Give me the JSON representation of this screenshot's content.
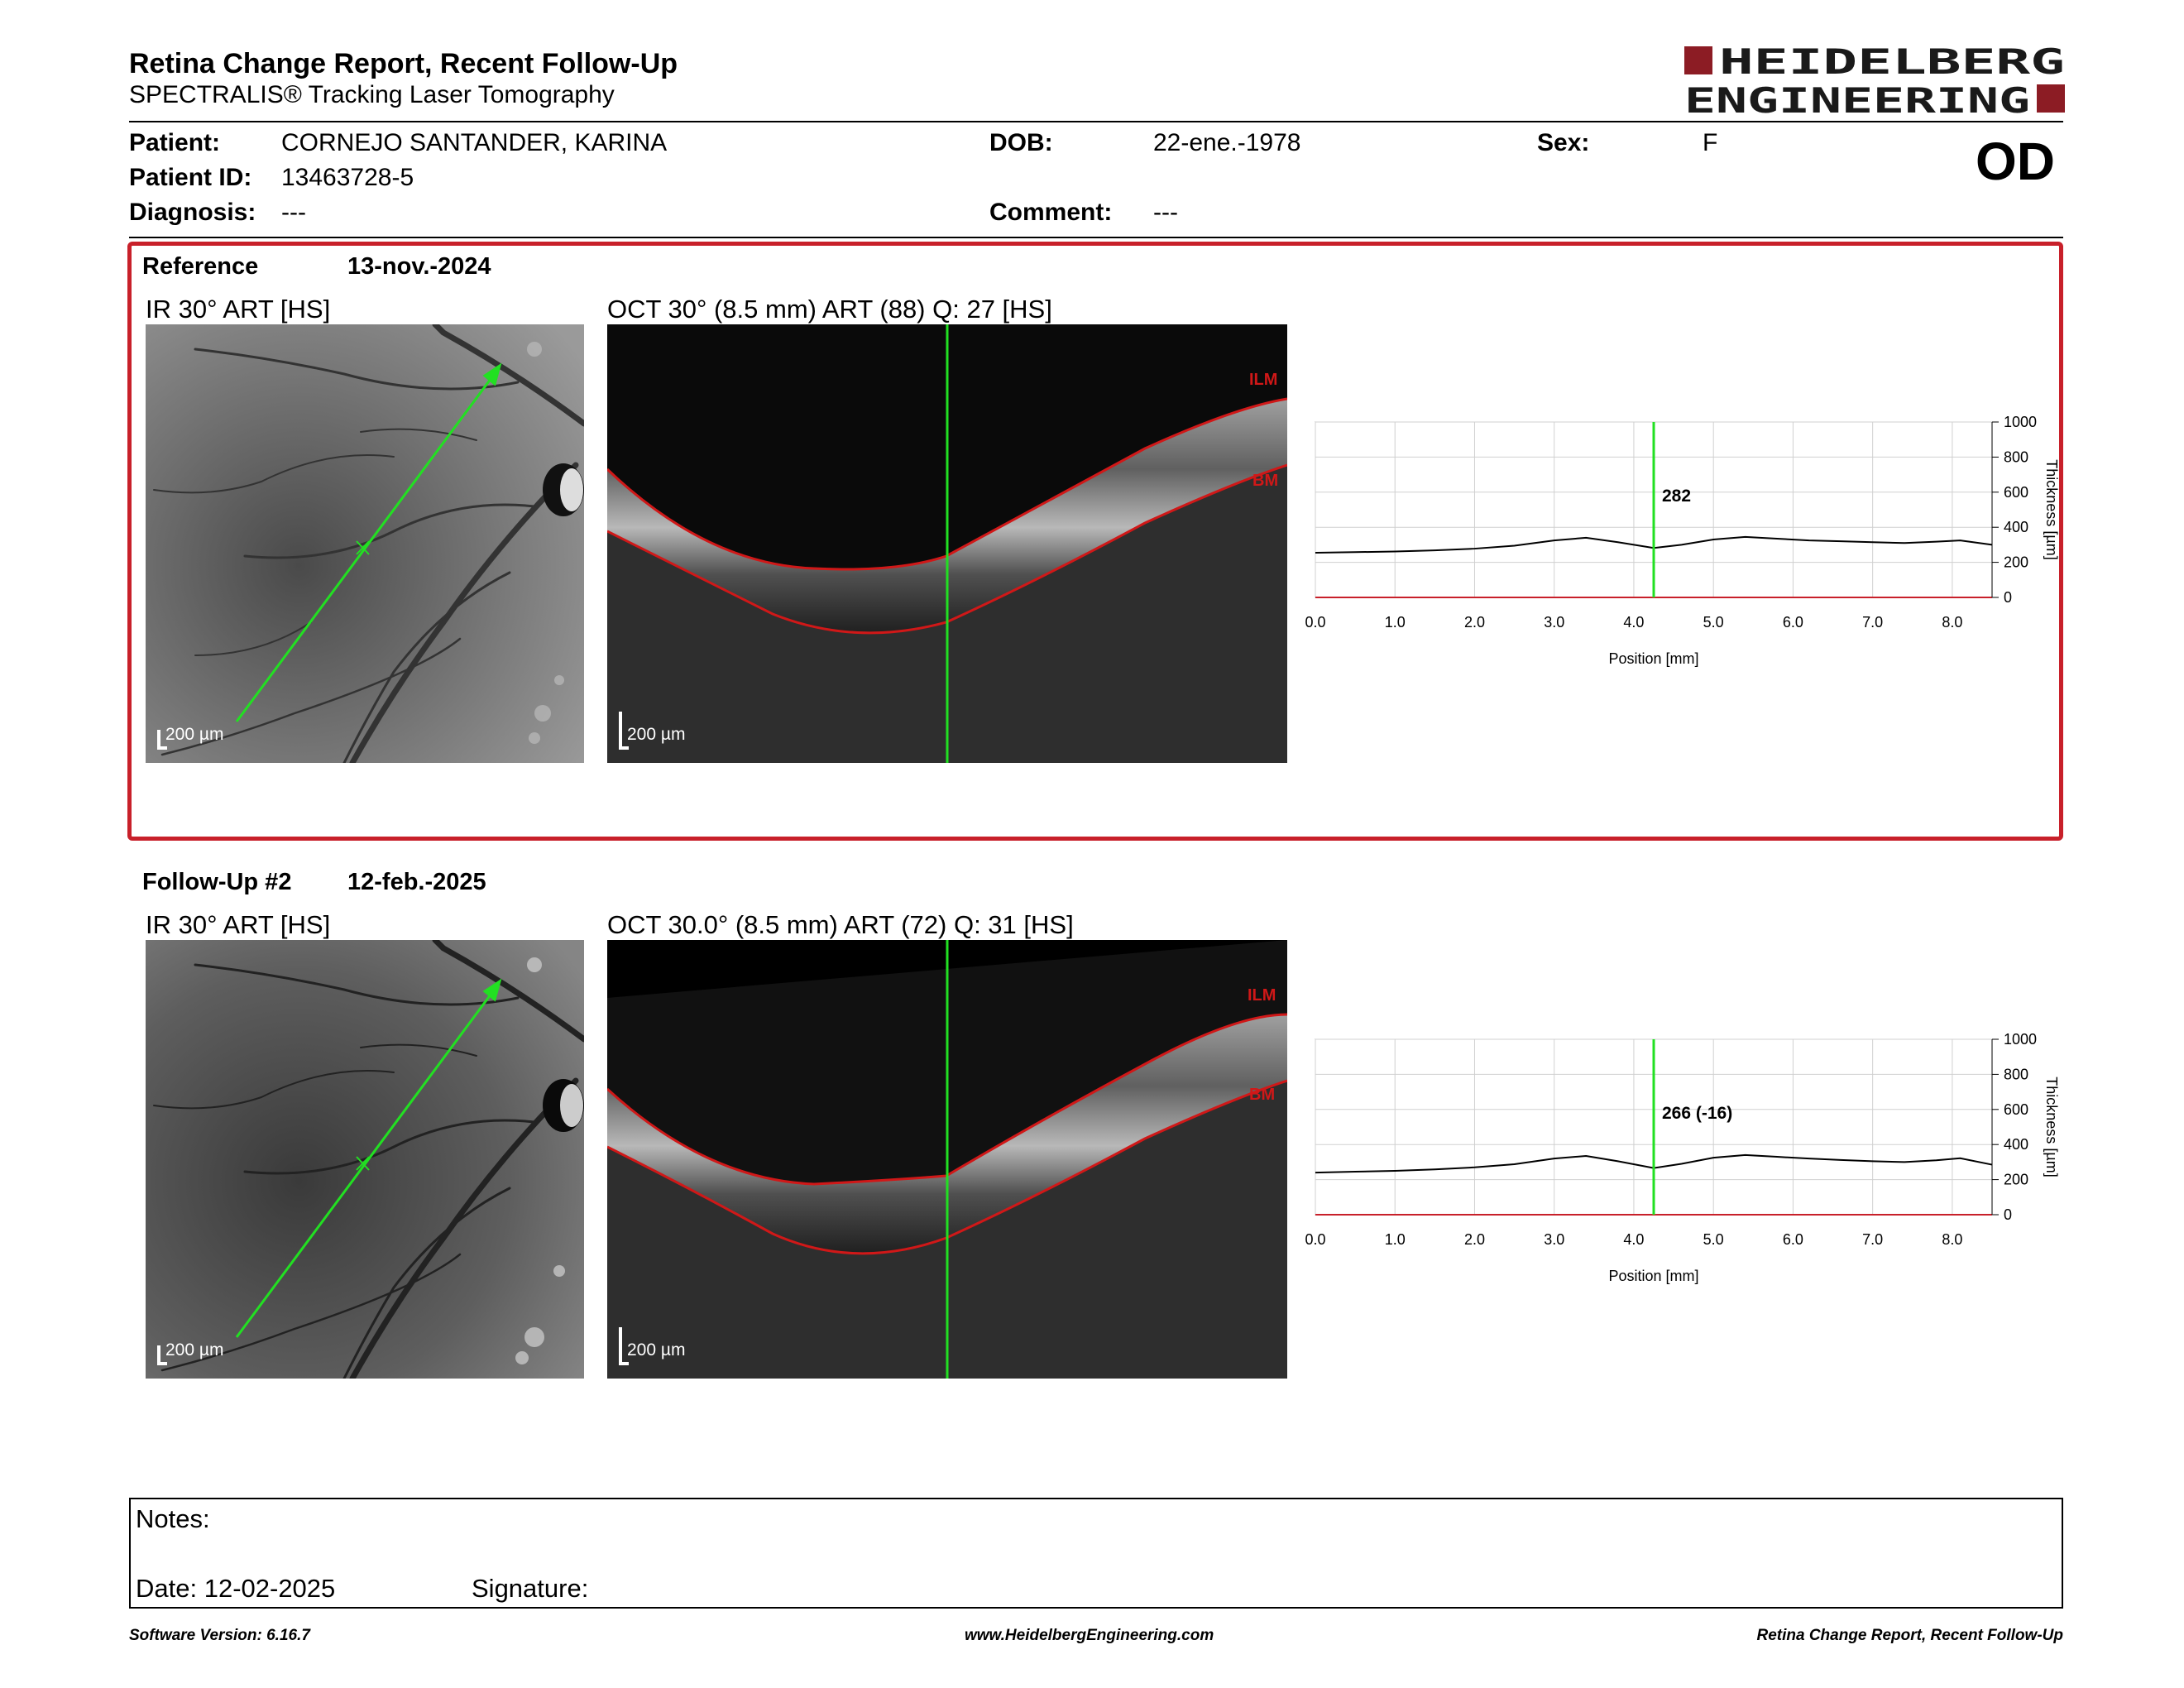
{
  "header": {
    "title": "Retina Change Report, Recent Follow-Up",
    "subtitle": "SPECTRALIS® Tracking Laser Tomography",
    "logo_line1": "HEIDELBERG",
    "logo_line2": "ENGINEERING",
    "eye": "OD"
  },
  "patient": {
    "patient_label": "Patient:",
    "patient_value": "CORNEJO SANTANDER, KARINA",
    "id_label": "Patient ID:",
    "id_value": "13463728-5",
    "diagnosis_label": "Diagnosis:",
    "diagnosis_value": "---",
    "dob_label": "DOB:",
    "dob_value": "22-ene.-1978",
    "comment_label": "Comment:",
    "comment_value": "---",
    "sex_label": "Sex:",
    "sex_value": "F"
  },
  "reference": {
    "label": "Reference",
    "date": "13-nov.-2024",
    "ir_label": "IR 30° ART [HS]",
    "oct_label": "OCT 30° (8.5 mm) ART (88) Q: 27 [HS]",
    "scale_ir": "200 µm",
    "scale_oct": "200 µm",
    "ilm": "ILM",
    "bm": "BM"
  },
  "followup": {
    "label": "Follow-Up #2",
    "date": "12-feb.-2025",
    "ir_label": "IR 30° ART [HS]",
    "oct_label": "OCT 30.0° (8.5 mm) ART (72) Q: 31 [HS]",
    "scale_ir": "200 µm",
    "scale_oct": "200 µm",
    "ilm": "ILM",
    "bm": "BM"
  },
  "chart_data": [
    {
      "type": "line",
      "xlabel": "Position [mm]",
      "ylabel": "Thickness [µm]",
      "xlim": [
        0,
        8.5
      ],
      "ylim": [
        0,
        1000
      ],
      "xticks": [
        "0.0",
        "1.0",
        "2.0",
        "3.0",
        "4.0",
        "5.0",
        "6.0",
        "7.0",
        "8.0"
      ],
      "yticks": [
        "0",
        "200",
        "400",
        "600",
        "800",
        "1000"
      ],
      "cursor_x": 4.25,
      "cursor_label": "282",
      "grid": true,
      "series": [
        {
          "x": [
            0,
            0.5,
            1.0,
            1.5,
            2.0,
            2.5,
            3.0,
            3.4,
            3.8,
            4.25,
            4.6,
            5.0,
            5.4,
            5.8,
            6.2,
            6.6,
            7.0,
            7.4,
            7.8,
            8.1,
            8.5
          ],
          "values": [
            255,
            258,
            262,
            268,
            278,
            295,
            325,
            340,
            315,
            282,
            300,
            330,
            345,
            335,
            325,
            320,
            315,
            310,
            318,
            325,
            300
          ]
        }
      ]
    },
    {
      "type": "line",
      "xlabel": "Position [mm]",
      "ylabel": "Thickness [µm]",
      "xlim": [
        0,
        8.5
      ],
      "ylim": [
        0,
        1000
      ],
      "xticks": [
        "0.0",
        "1.0",
        "2.0",
        "3.0",
        "4.0",
        "5.0",
        "6.0",
        "7.0",
        "8.0"
      ],
      "yticks": [
        "0",
        "200",
        "400",
        "600",
        "800",
        "1000"
      ],
      "cursor_x": 4.25,
      "cursor_label": "266 (-16)",
      "grid": true,
      "series": [
        {
          "x": [
            0,
            0.5,
            1.0,
            1.5,
            2.0,
            2.5,
            3.0,
            3.4,
            3.8,
            4.25,
            4.6,
            5.0,
            5.4,
            5.8,
            6.2,
            6.6,
            7.0,
            7.4,
            7.8,
            8.1,
            8.5
          ],
          "values": [
            240,
            245,
            250,
            258,
            270,
            288,
            320,
            335,
            305,
            266,
            290,
            325,
            340,
            330,
            320,
            312,
            305,
            300,
            310,
            322,
            285
          ]
        }
      ]
    }
  ],
  "notes": {
    "notes_label": "Notes:",
    "date_label": "Date: 12-02-2025",
    "signature_label": "Signature:"
  },
  "footer": {
    "software": "Software Version: 6.16.7",
    "url": "www.HeidelbergEngineering.com",
    "report": "Retina Change Report, Recent Follow-Up"
  },
  "colors": {
    "brand": "#8c1c24",
    "frame": "#c8202a",
    "scan": "#22e022",
    "layer": "#d01818"
  }
}
